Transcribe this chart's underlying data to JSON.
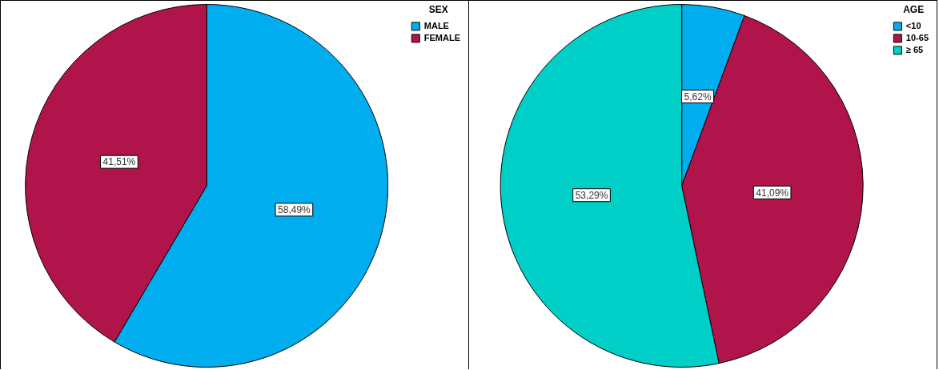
{
  "chart_data": [
    {
      "type": "pie",
      "legend_title": "SEX",
      "categories": [
        "MALE",
        "FEMALE"
      ],
      "values": [
        58.49,
        41.51
      ],
      "colors": [
        "#00aeef",
        "#b0144a"
      ],
      "value_labels": [
        "58,49%",
        "41,51%"
      ],
      "legend": "top right"
    },
    {
      "type": "pie",
      "legend_title": "AGE",
      "categories": [
        "<10",
        "10-65",
        "≥ 65"
      ],
      "values": [
        5.62,
        41.09,
        53.29
      ],
      "colors": [
        "#00aeef",
        "#b0144a",
        "#00cfc8"
      ],
      "value_labels": [
        "5,62%",
        "41,09%",
        "53,29%"
      ],
      "legend": "top right"
    }
  ]
}
